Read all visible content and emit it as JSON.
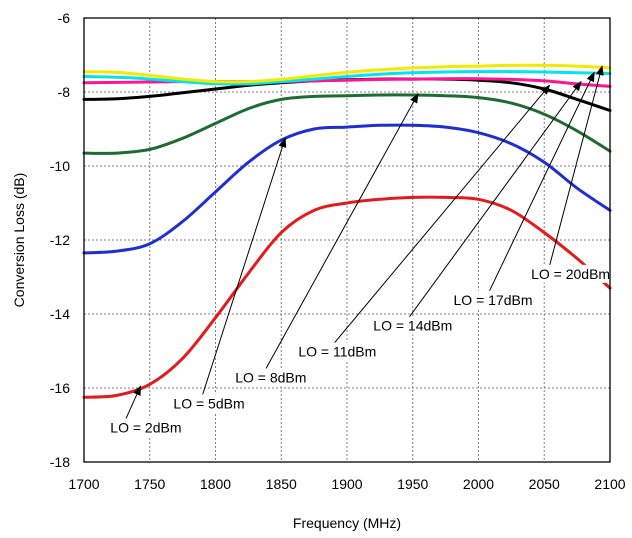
{
  "chart_data": {
    "type": "line",
    "title": "",
    "xlabel": "Frequency (MHz)",
    "ylabel": "Conversion Loss (dB)",
    "xlim": [
      1700,
      2100
    ],
    "ylim": [
      -18,
      -6
    ],
    "xticks": [
      1700,
      1750,
      1800,
      1850,
      1900,
      1950,
      2000,
      2050,
      2100
    ],
    "xtick_labels": [
      "1700",
      "1750",
      "1800",
      "1850",
      "1900",
      "1950",
      "2000",
      "2050",
      "2100"
    ],
    "yticks": [
      -18,
      -16,
      -14,
      -12,
      -10,
      -8,
      -6
    ],
    "ytick_labels": [
      "-18",
      "-16",
      "-14",
      "-12",
      "-10",
      "-8",
      "-6"
    ],
    "grid": true,
    "legend": "none",
    "x": [
      1700,
      1725,
      1750,
      1775,
      1800,
      1825,
      1850,
      1875,
      1900,
      1925,
      1950,
      1975,
      2000,
      2025,
      2050,
      2075,
      2100
    ],
    "series": [
      {
        "name": "LO = 2dBm",
        "color": "#e41a1c",
        "values": [
          -16.25,
          -16.2,
          -15.9,
          -15.2,
          -14.1,
          -12.9,
          -11.8,
          -11.2,
          -11.0,
          -10.9,
          -10.85,
          -10.85,
          -10.9,
          -11.2,
          -11.8,
          -12.5,
          -13.3
        ]
      },
      {
        "name": "LO = 5dBm",
        "color": "#1f2fd0",
        "values": [
          -12.35,
          -12.3,
          -12.1,
          -11.5,
          -10.7,
          -9.9,
          -9.3,
          -9.0,
          -8.95,
          -8.9,
          -8.9,
          -8.95,
          -9.1,
          -9.4,
          -9.9,
          -10.6,
          -11.2
        ]
      },
      {
        "name": "LO = 8dBm",
        "color": "#1e6b33",
        "values": [
          -9.65,
          -9.65,
          -9.55,
          -9.25,
          -8.85,
          -8.45,
          -8.2,
          -8.12,
          -8.1,
          -8.08,
          -8.08,
          -8.1,
          -8.15,
          -8.3,
          -8.6,
          -9.05,
          -9.6
        ]
      },
      {
        "name": "LO = 11dBm",
        "color": "#000000",
        "values": [
          -8.2,
          -8.18,
          -8.12,
          -8.02,
          -7.92,
          -7.82,
          -7.75,
          -7.7,
          -7.67,
          -7.65,
          -7.65,
          -7.65,
          -7.68,
          -7.75,
          -7.92,
          -8.2,
          -8.5
        ]
      },
      {
        "name": "LO = 14dBm",
        "color": "#ff1493",
        "values": [
          -7.75,
          -7.74,
          -7.73,
          -7.72,
          -7.72,
          -7.72,
          -7.72,
          -7.7,
          -7.68,
          -7.66,
          -7.65,
          -7.64,
          -7.64,
          -7.66,
          -7.7,
          -7.78,
          -7.85
        ]
      },
      {
        "name": "LO = 17dBm",
        "color": "#00e5ee",
        "values": [
          -7.58,
          -7.6,
          -7.65,
          -7.72,
          -7.78,
          -7.78,
          -7.72,
          -7.65,
          -7.58,
          -7.52,
          -7.48,
          -7.46,
          -7.45,
          -7.45,
          -7.46,
          -7.48,
          -7.5
        ]
      },
      {
        "name": "LO = 20dBm",
        "color": "#f2ea00",
        "values": [
          -7.45,
          -7.47,
          -7.55,
          -7.65,
          -7.72,
          -7.72,
          -7.66,
          -7.56,
          -7.47,
          -7.4,
          -7.35,
          -7.32,
          -7.3,
          -7.28,
          -7.28,
          -7.3,
          -7.35
        ]
      }
    ],
    "annotations": [
      {
        "text": "LO = 2dBm",
        "label_x": 1720,
        "label_y": -17.2,
        "arrow_from": [
          1731,
          -16.9
        ],
        "arrow_to": [
          1743,
          -15.95
        ]
      },
      {
        "text": "LO = 5dBm",
        "label_x": 1768,
        "label_y": -16.55,
        "arrow_from": [
          1790,
          -16.2
        ],
        "arrow_to": [
          1853,
          -9.25
        ]
      },
      {
        "text": "LO = 8dBm",
        "label_x": 1815,
        "label_y": -15.85,
        "arrow_from": [
          1838,
          -15.5
        ],
        "arrow_to": [
          1954,
          -8.05
        ]
      },
      {
        "text": "LO = 11dBm",
        "label_x": 1863,
        "label_y": -15.15,
        "arrow_from": [
          1890,
          -14.8
        ],
        "arrow_to": [
          2054,
          -7.82
        ]
      },
      {
        "text": "LO = 14dBm",
        "label_x": 1920,
        "label_y": -14.45,
        "arrow_from": [
          1947,
          -14.1
        ],
        "arrow_to": [
          2078,
          -7.72
        ]
      },
      {
        "text": "LO = 17dBm",
        "label_x": 1981,
        "label_y": -13.75,
        "arrow_from": [
          2008,
          -13.4
        ],
        "arrow_to": [
          2088,
          -7.47
        ]
      },
      {
        "text": "LO = 20dBm",
        "label_x": 2040,
        "label_y": -13.05,
        "arrow_from": [
          2054,
          -12.7
        ],
        "arrow_to": [
          2094,
          -7.3
        ]
      }
    ]
  }
}
